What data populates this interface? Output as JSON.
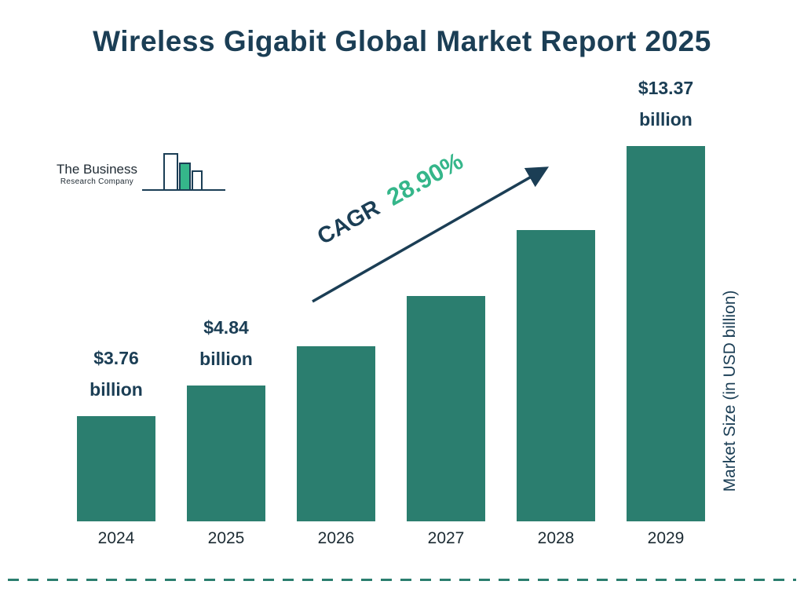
{
  "title": "Wireless Gigabit Global Market Report 2025",
  "logo": {
    "line1": "The Business",
    "line2": "Research Company"
  },
  "cagr": {
    "label": "CAGR",
    "value": "28.90%"
  },
  "y_axis_label": "Market Size (in USD billion)",
  "colors": {
    "title": "#1b3e55",
    "bar": "#2b7e6f",
    "cagr_green": "#35b68a",
    "arrow": "#1b3e55",
    "dashed_line": "#2b7e6f"
  },
  "chart_data": {
    "type": "bar",
    "title": "Wireless Gigabit Global Market Report 2025",
    "categories": [
      "2024",
      "2025",
      "2026",
      "2027",
      "2028",
      "2029"
    ],
    "values": [
      3.76,
      4.84,
      6.24,
      8.04,
      10.37,
      13.37
    ],
    "unit": "USD billion",
    "xlabel": "",
    "ylabel": "Market Size (in USD billion)",
    "cagr": "28.90%",
    "bar_labels": [
      {
        "amount": "$3.76",
        "unit": "billion"
      },
      {
        "amount": "$4.84",
        "unit": "billion"
      },
      null,
      null,
      null,
      {
        "amount": "$13.37",
        "unit": "billion"
      }
    ],
    "legend": false,
    "grid": false
  }
}
